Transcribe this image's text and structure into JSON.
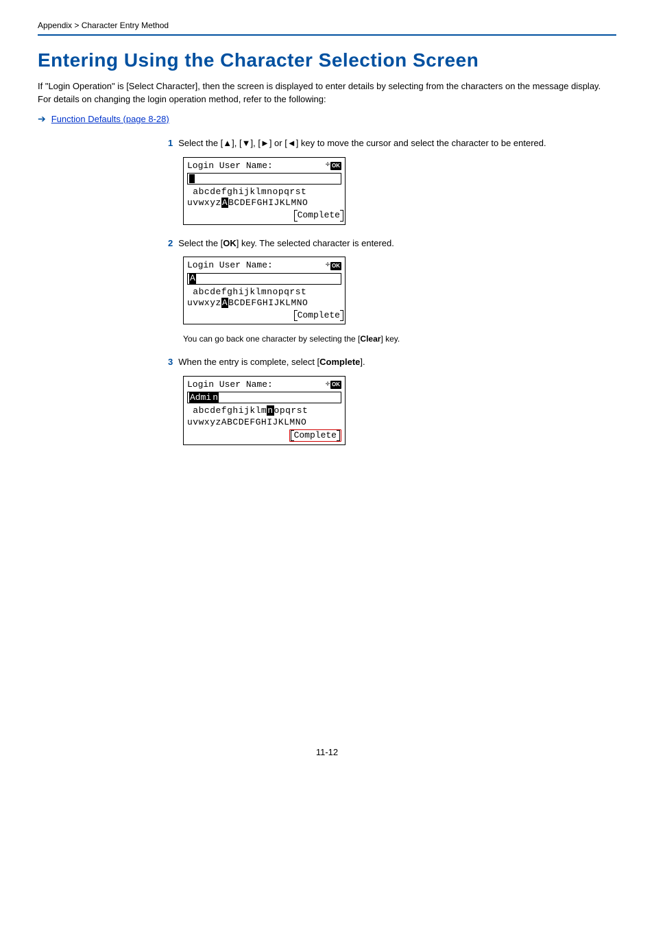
{
  "header": {
    "breadcrumb": "Appendix > Character Entry Method"
  },
  "heading": "Entering Using the Character Selection Screen",
  "intro": "If \"Login Operation\" is [Select Character], then the screen is displayed to enter details by selecting from the characters on the message display. For details on changing the login operation method, refer to the following:",
  "link": {
    "text": "Function Defaults (page 8-28)"
  },
  "steps": {
    "s1": {
      "num": "1",
      "text_a": "Select the [",
      "k1": "▲",
      "t2": "], [",
      "k2": "▼",
      "t3": "], [",
      "k3": "►",
      "t4": "] or [",
      "k4": "◄",
      "t5": "] key to move the cursor and select the character to be entered."
    },
    "s2": {
      "num": "2",
      "text_a": "Select the [",
      "bold": "OK",
      "text_b": "] key. The selected character is entered."
    },
    "s2note": {
      "a": "You can go back one character by selecting the [",
      "b": "Clear",
      "c": "] key."
    },
    "s3": {
      "num": "3",
      "text_a": "When the entry is complete, select [",
      "bold": "Complete",
      "text_b": "]."
    }
  },
  "lcd": {
    "title": "Login User Name:",
    "ok": "OK",
    "row1_a": " abcdefghijklmnopqrst",
    "row2_pre": "uvwxyz",
    "row2_sel": "A",
    "row2_post": "BCDEFGHIJKLMNO",
    "complete": "Complete",
    "input2": "A",
    "input3_pre": "Admi",
    "input3_sel": "n",
    "row1_c_pre": " abcdefghijklm",
    "row1_c_sel": "n",
    "row1_c_post": "opqrst",
    "row2_c": "uvwxyzABCDEFGHIJKLMNO"
  },
  "footer": {
    "page": "11-12"
  },
  "colors": {
    "accent": "#0050a0",
    "link": "#0033cc",
    "highlight": "#d00000"
  }
}
